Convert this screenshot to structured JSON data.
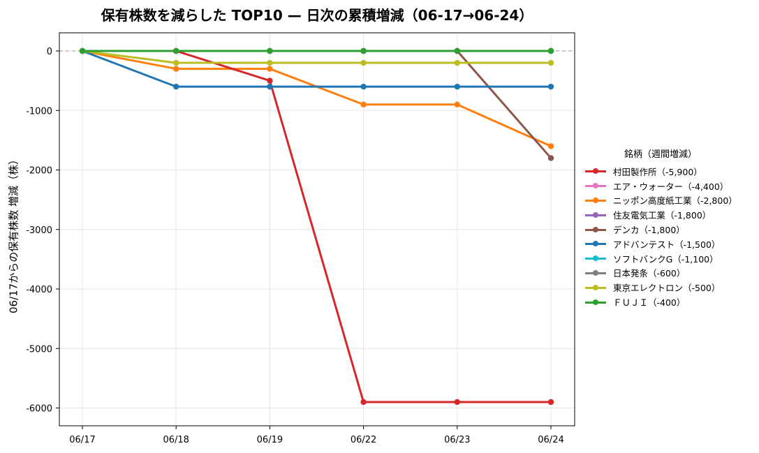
{
  "chart_data": {
    "type": "line",
    "title": "保有株数を減らした TOP10 — 日次の累積増減（06-17→06-24）",
    "xlabel": "",
    "ylabel": "06/17からの保有株数 増減（株）",
    "categories": [
      "06/17",
      "06/18",
      "06/19",
      "06/22",
      "06/23",
      "06/24"
    ],
    "ylim": [
      -6200,
      300
    ],
    "yticks": [
      0,
      -1000,
      -2000,
      -3000,
      -4000,
      -5000,
      -6000
    ],
    "grid": true,
    "zero_line": "dashed",
    "legend_title": "銘柄（週間増減）",
    "legend_position": "right",
    "series": [
      {
        "name": "村田製作所（-5,900）",
        "color": "#d62728",
        "values": [
          0,
          0,
          -500,
          -5900,
          -5900,
          -5900
        ]
      },
      {
        "name": "エア・ウォーター（-4,400）",
        "color": "#e377c2",
        "values": [
          0,
          0,
          0,
          0,
          0,
          0
        ]
      },
      {
        "name": "ニッポン高度紙工業（-2,800）",
        "color": "#ff7f0e",
        "values": [
          0,
          -300,
          -300,
          -900,
          -900,
          -1600
        ]
      },
      {
        "name": "住友電気工業（-1,800）",
        "color": "#9467bd",
        "values": [
          0,
          0,
          0,
          0,
          0,
          0
        ]
      },
      {
        "name": "デンカ（-1,800）",
        "color": "#8c564b",
        "values": [
          0,
          0,
          0,
          0,
          0,
          -1800
        ]
      },
      {
        "name": "アドバンテスト（-1,500）",
        "color": "#1f77b4",
        "values": [
          0,
          -600,
          -600,
          -600,
          -600,
          -600
        ]
      },
      {
        "name": "ソフトバンクG（-1,100）",
        "color": "#17becf",
        "values": [
          0,
          0,
          0,
          0,
          0,
          0
        ]
      },
      {
        "name": "日本発条（-600）",
        "color": "#7f7f7f",
        "values": [
          0,
          0,
          0,
          0,
          0,
          0
        ]
      },
      {
        "name": "東京エレクトロン（-500）",
        "color": "#bcbd22",
        "values": [
          0,
          -200,
          -200,
          -200,
          -200,
          -200
        ]
      },
      {
        "name": "ＦＵＪＩ（-400）",
        "color": "#2ca02c",
        "values": [
          0,
          0,
          0,
          0,
          0,
          0
        ]
      }
    ],
    "draw_order": [
      2,
      4,
      0,
      5,
      1,
      3,
      6,
      7,
      8,
      9
    ]
  }
}
